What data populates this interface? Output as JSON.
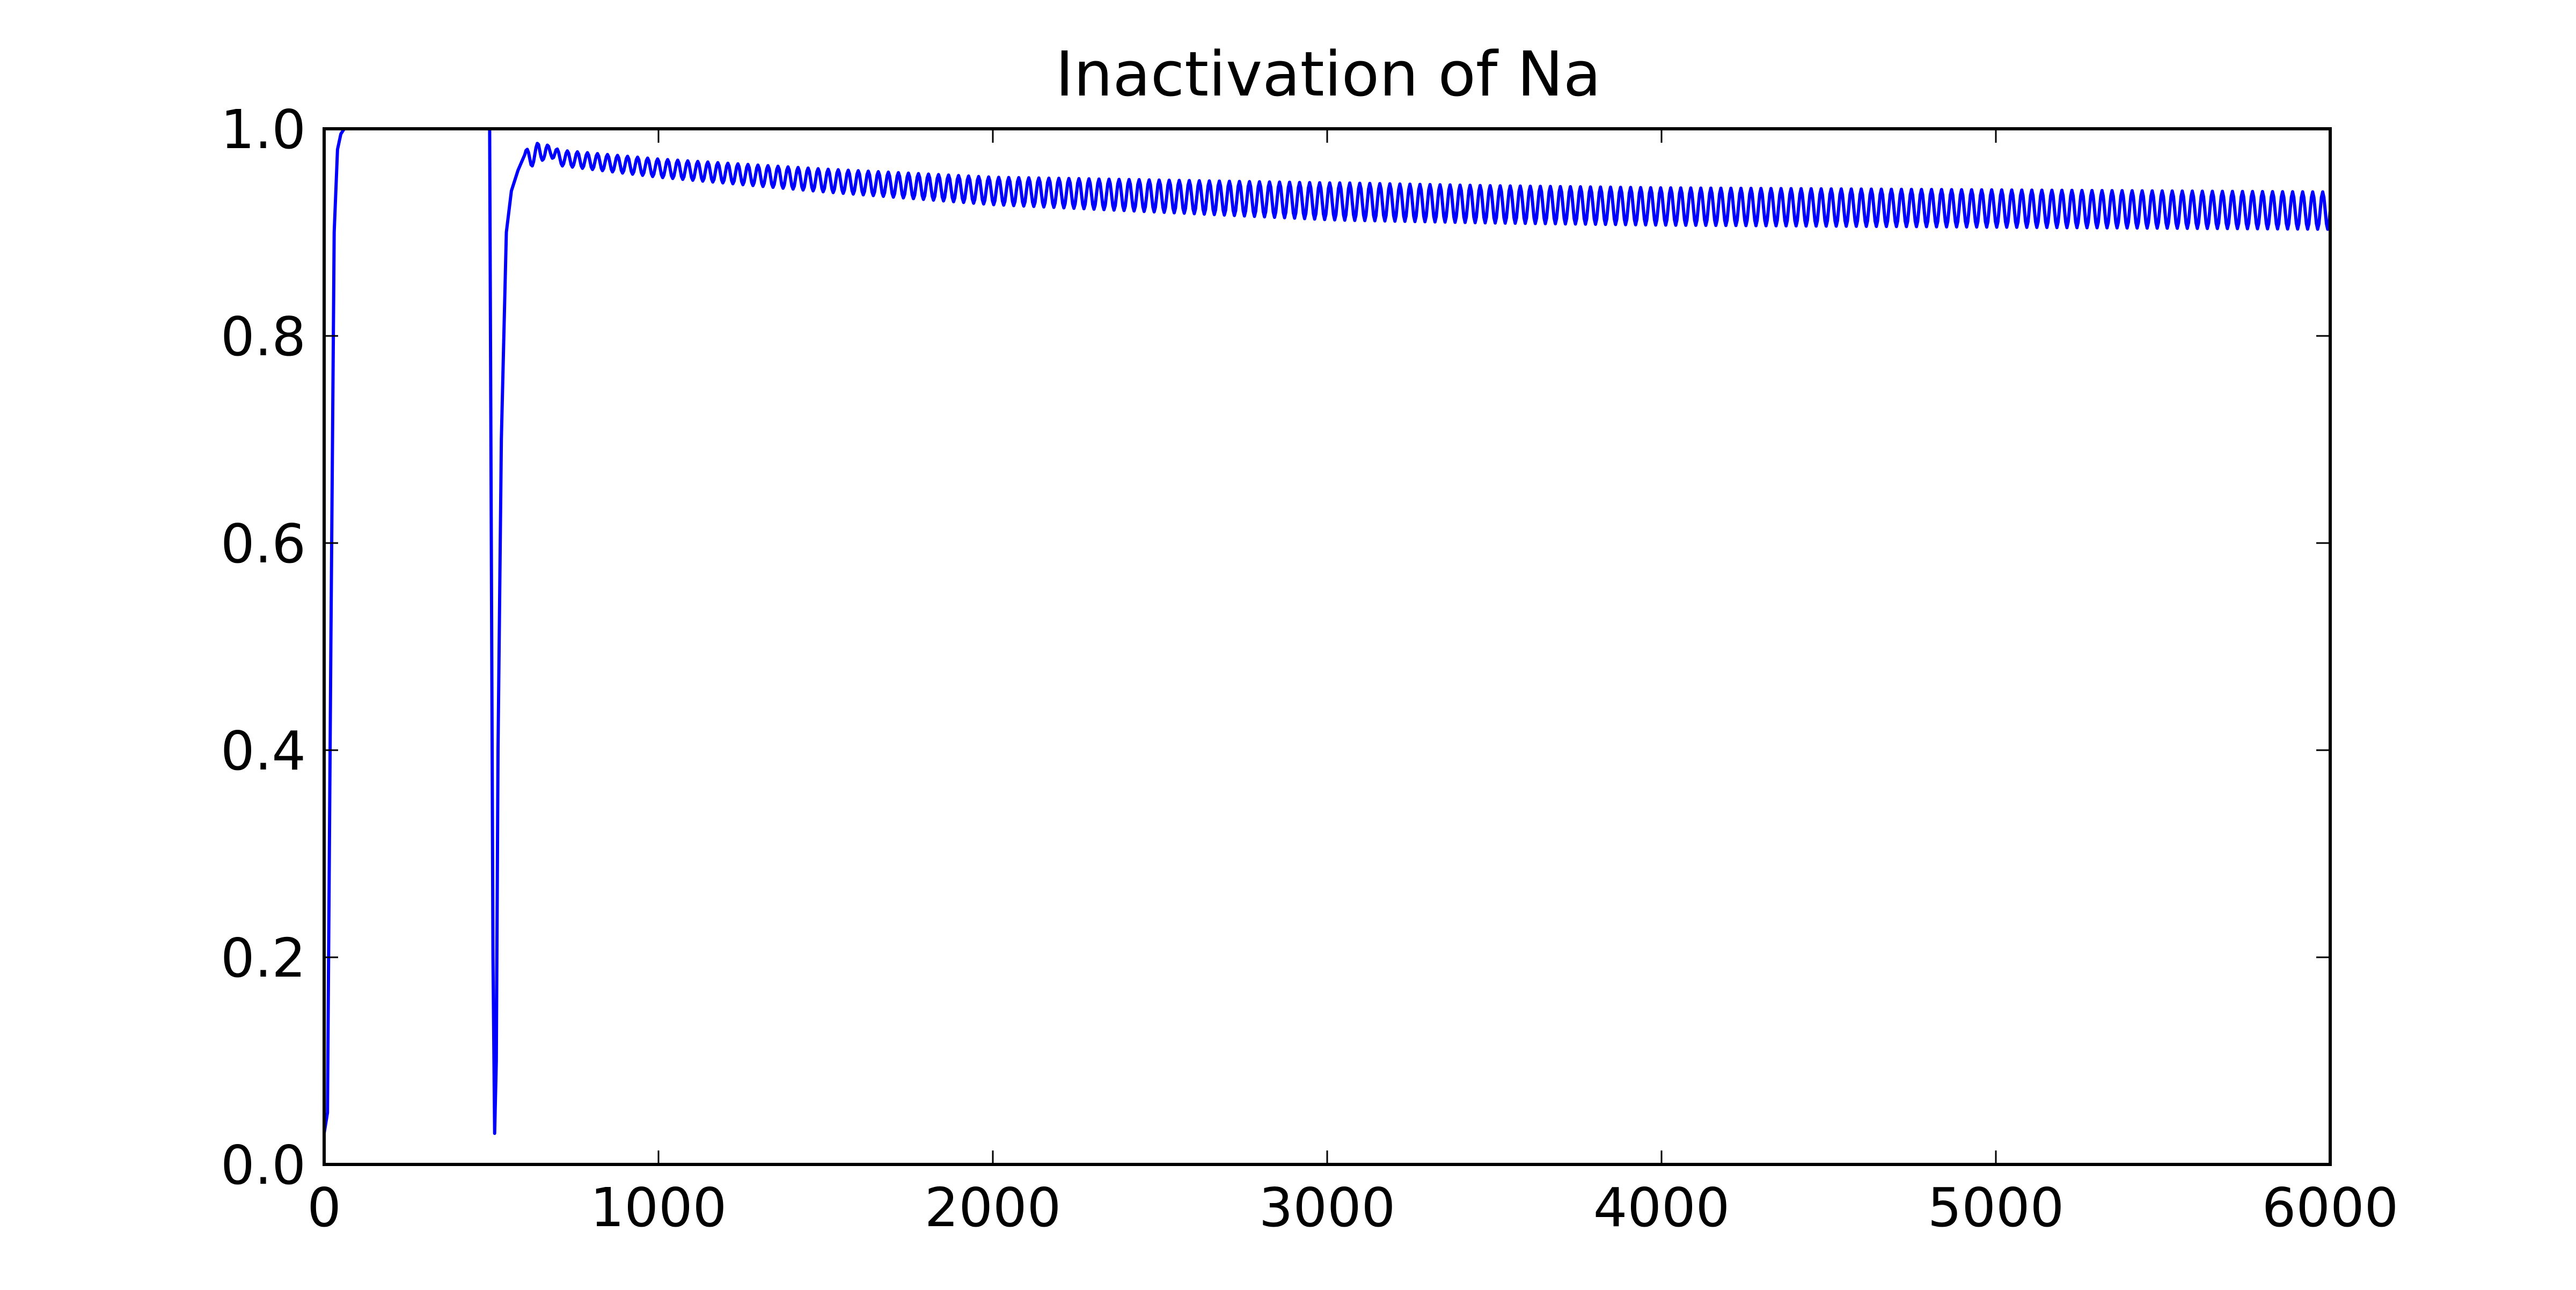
{
  "chart_data": {
    "type": "line",
    "title": "Inactivation of Na",
    "xlabel": "",
    "ylabel": "",
    "xlim": [
      0,
      6000
    ],
    "ylim": [
      0.0,
      1.0
    ],
    "xticks": [
      0,
      1000,
      2000,
      3000,
      4000,
      5000,
      6000
    ],
    "xtick_labels": [
      "0",
      "1000",
      "2000",
      "3000",
      "4000",
      "5000",
      "6000"
    ],
    "yticks": [
      0.0,
      0.2,
      0.4,
      0.6,
      0.8,
      1.0
    ],
    "ytick_labels": [
      "0.0",
      "0.2",
      "0.4",
      "0.6",
      "0.8",
      "1.0"
    ],
    "grid": false,
    "legend": "none",
    "series": [
      {
        "color": "#0000ff",
        "x": [
          0,
          10,
          20,
          30,
          40,
          50,
          60,
          70,
          80,
          100,
          200,
          300,
          400,
          495,
          500,
          505,
          510,
          515,
          520,
          530,
          545,
          560,
          580,
          600,
          620,
          640,
          660,
          680,
          700,
          1000,
          1500,
          2000,
          2500,
          3000,
          3500,
          4000,
          4500,
          5000,
          5500,
          6000
        ],
        "y": [
          0.03,
          0.05,
          0.5,
          0.9,
          0.98,
          0.995,
          1.0,
          1.0,
          1.0,
          1.0,
          1.0,
          1.0,
          1.0,
          1.0,
          0.6,
          0.2,
          0.03,
          0.1,
          0.4,
          0.7,
          0.9,
          0.94,
          0.96,
          0.975,
          0.97,
          0.98,
          0.975,
          0.98,
          0.972,
          0.962,
          0.95,
          0.94,
          0.935,
          0.93,
          0.927,
          0.925,
          0.924,
          0.923,
          0.922,
          0.921
        ],
        "oscillation": {
          "start_x": 600,
          "period": 30,
          "half_width_start": 0.007,
          "half_width_end": 0.018
        }
      }
    ]
  }
}
